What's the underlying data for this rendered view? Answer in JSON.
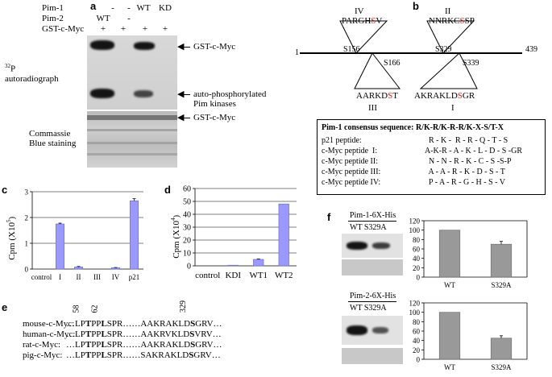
{
  "panel_a": {
    "label": "a",
    "rows": [
      {
        "name": "Pim-1",
        "values": [
          "-",
          "-",
          "WT",
          "KD"
        ]
      },
      {
        "name": "Pim-2",
        "values": [
          "WT",
          "-",
          "",
          ""
        ]
      },
      {
        "name": "GST-c-Myc",
        "values": [
          "+",
          "+",
          "+",
          "+"
        ]
      }
    ],
    "autorad_label": "autoradiograph",
    "autorad_sup": "32",
    "autorad_prefix": "P",
    "arrow_gst": "GST-c-Myc",
    "arrow_auto_line1": "auto-phosphorylated",
    "arrow_auto_line2": "Pim kinases",
    "arrow_gst2": "GST-c-Myc",
    "stain_line1": "Commassie",
    "stain_line2": "Blue staining"
  },
  "panel_b": {
    "label": "b",
    "start": "1",
    "end": "439",
    "top_sites": [
      {
        "roman": "IV",
        "seq_pre": "PARGH",
        "seq_red": "S",
        "seq_post": "V"
      },
      {
        "roman": "II",
        "seq_pre": "NNRKC",
        "seq_red": "S",
        "seq_post": "SP"
      }
    ],
    "bottom_sites": [
      {
        "roman": "III",
        "seq_pre": "AARKD",
        "seq_red": "S",
        "seq_post": "T"
      },
      {
        "roman": "I",
        "seq_pre": "AKRAKLD",
        "seq_red": "S",
        "seq_post": "GR"
      }
    ],
    "site_labels": [
      "S156",
      "S166",
      "S329",
      "S339"
    ],
    "consensus_title": "Pim-1 consensus sequence: R/K-R/K-R-R/K-X-S/T-X",
    "peptides": [
      {
        "name": "p21 peptide:",
        "seq": "  R - K -  R - R - Q - T - S"
      },
      {
        "name": "c-Myc peptide  I:",
        "seq": "A-K-R - A - K - L - D - S -GR"
      },
      {
        "name": "c-Myc peptide II:",
        "seq": "  N - N - R - K - C - S -S-P"
      },
      {
        "name": "c-Myc peptide III:",
        "seq": "  A - A - R - K - D - S - T"
      },
      {
        "name": "c-Myc peptide IV:",
        "seq": "  P - A - R - G - H - S - V"
      }
    ]
  },
  "panel_c": {
    "label": "c",
    "ylabel": "Cpm (X10",
    "ylabel_sup": "5",
    "ylabel_close": ")",
    "chart_data": {
      "type": "bar",
      "categories": [
        "control",
        "I",
        "II",
        "III",
        "IV",
        "p21"
      ],
      "values": [
        0,
        1.75,
        0.08,
        0,
        0.05,
        2.65
      ],
      "errors": [
        0,
        0.03,
        0.02,
        0,
        0.01,
        0.08
      ],
      "ylim": [
        0,
        3
      ],
      "yticks": [
        "0",
        "1",
        "2",
        "3"
      ],
      "bar_color": "#9999ff"
    }
  },
  "panel_d": {
    "label": "d",
    "ylabel": "Cpm (X10",
    "ylabel_sup": "4",
    "ylabel_close": ")",
    "chart_data": {
      "type": "bar",
      "categories": [
        "control",
        "KDI",
        "WT1",
        "WT2"
      ],
      "values": [
        0,
        0.5,
        5,
        48
      ],
      "errors": [
        0,
        0,
        0.3,
        0
      ],
      "ylim": [
        0,
        60
      ],
      "yticks": [
        "0",
        "10",
        "20",
        "30",
        "40",
        "50",
        "60"
      ],
      "bar_color": "#9999ff"
    }
  },
  "panel_e": {
    "label": "e",
    "positions": [
      "58",
      "62",
      "329"
    ],
    "rows": [
      {
        "name": "mouse-c-Myc:",
        "pre": "…LP",
        "b1": "T",
        "mid": "PP",
        "b2": "L",
        "mid2": "SPR……AAKRAKLD",
        "b3": "S",
        "post": "GRV…"
      },
      {
        "name": "human-c-Myc:",
        "pre": "…LP",
        "b1": "T",
        "mid": "PP",
        "b2": "L",
        "mid2": "SPR……AAKRVKLD",
        "b3": "S",
        "post": "VRV…"
      },
      {
        "name": "rat-c-Myc:",
        "pre": "…LP",
        "b1": "T",
        "mid": "PP",
        "b2": "L",
        "mid2": "SPR……AAKRAKLD",
        "b3": "S",
        "post": "GRV…"
      },
      {
        "name": "pig-c-Myc:",
        "pre": "…LP",
        "b1": "T",
        "mid": "PP",
        "b2": "L",
        "mid2": "SPR……SAKRAKLD",
        "b3": "S",
        "post": "GRV…"
      }
    ]
  },
  "panel_f": {
    "label": "f",
    "blot1_title": "Pim-1-6X-His",
    "blot2_title": "Pim-2-6X-His",
    "lane_labels": "WT S329A",
    "yticks": [
      "0",
      "20",
      "40",
      "60",
      "80",
      "100",
      "120"
    ],
    "chart_data": [
      {
        "type": "bar",
        "categories": [
          "WT",
          "S329A"
        ],
        "values": [
          100,
          70
        ],
        "errors": [
          0,
          6
        ],
        "ylim": [
          0,
          120
        ],
        "bar_color": "#999999"
      },
      {
        "type": "bar",
        "categories": [
          "WT",
          "S329A"
        ],
        "values": [
          100,
          45
        ],
        "errors": [
          0,
          5
        ],
        "ylim": [
          0,
          120
        ],
        "bar_color": "#999999"
      }
    ]
  }
}
